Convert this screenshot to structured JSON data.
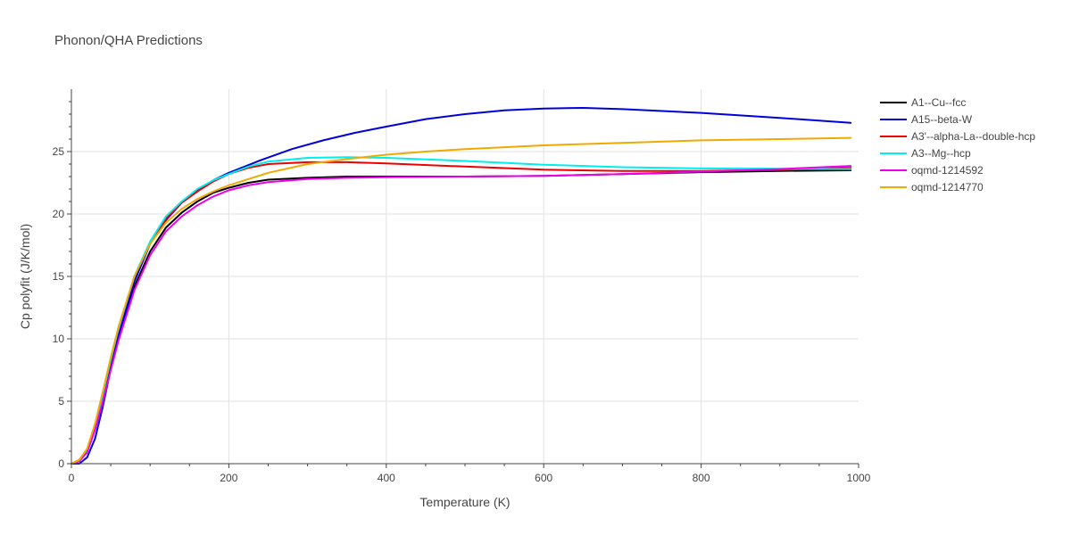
{
  "chart_data": {
    "type": "line",
    "title": "Phonon/QHA Predictions",
    "xlabel": "Temperature (K)",
    "ylabel": "Cp polyfit (J/K/mol)",
    "xlim": [
      0,
      1000
    ],
    "ylim": [
      0,
      30
    ],
    "xticks": [
      0,
      200,
      400,
      600,
      800,
      1000
    ],
    "yticks": [
      0,
      5,
      10,
      15,
      20,
      25
    ],
    "grid": true,
    "legend_position": "top-right",
    "series": [
      {
        "name": "A1--Cu--fcc",
        "color": "#000000",
        "points": [
          [
            0,
            0
          ],
          [
            10,
            0.2
          ],
          [
            20,
            1.0
          ],
          [
            30,
            2.8
          ],
          [
            40,
            5.2
          ],
          [
            50,
            7.8
          ],
          [
            60,
            10.2
          ],
          [
            80,
            14.2
          ],
          [
            100,
            17.0
          ],
          [
            120,
            18.9
          ],
          [
            140,
            20.1
          ],
          [
            160,
            21.0
          ],
          [
            180,
            21.7
          ],
          [
            200,
            22.1
          ],
          [
            225,
            22.5
          ],
          [
            250,
            22.75
          ],
          [
            300,
            22.9
          ],
          [
            350,
            23.0
          ],
          [
            400,
            23.0
          ],
          [
            500,
            23.0
          ],
          [
            600,
            23.05
          ],
          [
            700,
            23.2
          ],
          [
            800,
            23.35
          ],
          [
            900,
            23.45
          ],
          [
            990,
            23.5
          ]
        ]
      },
      {
        "name": "A15--beta-W",
        "color": "#0000dd",
        "points": [
          [
            0,
            0
          ],
          [
            10,
            0.0
          ],
          [
            20,
            0.5
          ],
          [
            30,
            2.0
          ],
          [
            40,
            4.6
          ],
          [
            50,
            7.6
          ],
          [
            60,
            10.3
          ],
          [
            80,
            14.6
          ],
          [
            100,
            17.6
          ],
          [
            120,
            19.5
          ],
          [
            140,
            20.9
          ],
          [
            160,
            21.9
          ],
          [
            180,
            22.7
          ],
          [
            200,
            23.3
          ],
          [
            240,
            24.3
          ],
          [
            280,
            25.2
          ],
          [
            320,
            25.9
          ],
          [
            360,
            26.5
          ],
          [
            400,
            27.0
          ],
          [
            450,
            27.6
          ],
          [
            500,
            28.0
          ],
          [
            550,
            28.3
          ],
          [
            600,
            28.45
          ],
          [
            650,
            28.5
          ],
          [
            700,
            28.4
          ],
          [
            800,
            28.1
          ],
          [
            900,
            27.7
          ],
          [
            990,
            27.3
          ]
        ]
      },
      {
        "name": "A3'--alpha-La--double-hcp",
        "color": "#ee0000",
        "points": [
          [
            0,
            0
          ],
          [
            10,
            0.3
          ],
          [
            20,
            1.1
          ],
          [
            30,
            3.0
          ],
          [
            40,
            5.6
          ],
          [
            50,
            8.3
          ],
          [
            60,
            10.9
          ],
          [
            80,
            15.0
          ],
          [
            100,
            17.7
          ],
          [
            120,
            19.6
          ],
          [
            140,
            20.9
          ],
          [
            160,
            21.8
          ],
          [
            180,
            22.6
          ],
          [
            200,
            23.2
          ],
          [
            225,
            23.7
          ],
          [
            250,
            24.0
          ],
          [
            300,
            24.15
          ],
          [
            350,
            24.15
          ],
          [
            400,
            24.05
          ],
          [
            500,
            23.8
          ],
          [
            600,
            23.55
          ],
          [
            700,
            23.45
          ],
          [
            800,
            23.45
          ],
          [
            900,
            23.55
          ],
          [
            990,
            23.7
          ]
        ]
      },
      {
        "name": "A3--Mg--hcp",
        "color": "#00eeee",
        "points": [
          [
            0,
            0
          ],
          [
            10,
            0.3
          ],
          [
            20,
            1.1
          ],
          [
            30,
            3.0
          ],
          [
            40,
            5.6
          ],
          [
            50,
            8.3
          ],
          [
            60,
            10.9
          ],
          [
            80,
            15.0
          ],
          [
            100,
            17.8
          ],
          [
            120,
            19.8
          ],
          [
            140,
            21.0
          ],
          [
            160,
            22.0
          ],
          [
            180,
            22.7
          ],
          [
            200,
            23.2
          ],
          [
            225,
            23.8
          ],
          [
            250,
            24.2
          ],
          [
            300,
            24.5
          ],
          [
            350,
            24.55
          ],
          [
            400,
            24.5
          ],
          [
            500,
            24.25
          ],
          [
            600,
            23.95
          ],
          [
            700,
            23.75
          ],
          [
            800,
            23.65
          ],
          [
            900,
            23.62
          ],
          [
            990,
            23.6
          ]
        ]
      },
      {
        "name": "oqmd-1214592",
        "color": "#ee00ee",
        "points": [
          [
            0,
            0
          ],
          [
            10,
            0.2
          ],
          [
            20,
            0.9
          ],
          [
            30,
            2.7
          ],
          [
            40,
            5.0
          ],
          [
            50,
            7.5
          ],
          [
            60,
            9.9
          ],
          [
            80,
            13.9
          ],
          [
            100,
            16.7
          ],
          [
            120,
            18.6
          ],
          [
            140,
            19.8
          ],
          [
            160,
            20.7
          ],
          [
            180,
            21.4
          ],
          [
            200,
            21.9
          ],
          [
            225,
            22.3
          ],
          [
            250,
            22.55
          ],
          [
            300,
            22.8
          ],
          [
            350,
            22.9
          ],
          [
            400,
            22.95
          ],
          [
            500,
            23.0
          ],
          [
            600,
            23.05
          ],
          [
            700,
            23.2
          ],
          [
            800,
            23.4
          ],
          [
            900,
            23.6
          ],
          [
            990,
            23.85
          ]
        ]
      },
      {
        "name": "oqmd-1214770",
        "color": "#eeaa00",
        "points": [
          [
            0,
            0
          ],
          [
            10,
            0.3
          ],
          [
            20,
            1.2
          ],
          [
            30,
            3.2
          ],
          [
            40,
            5.8
          ],
          [
            50,
            8.5
          ],
          [
            60,
            11.0
          ],
          [
            80,
            15.0
          ],
          [
            100,
            17.6
          ],
          [
            120,
            19.3
          ],
          [
            140,
            20.4
          ],
          [
            160,
            21.2
          ],
          [
            180,
            21.8
          ],
          [
            200,
            22.3
          ],
          [
            250,
            23.3
          ],
          [
            300,
            24.0
          ],
          [
            350,
            24.4
          ],
          [
            400,
            24.75
          ],
          [
            450,
            25.0
          ],
          [
            500,
            25.2
          ],
          [
            600,
            25.5
          ],
          [
            700,
            25.7
          ],
          [
            800,
            25.9
          ],
          [
            900,
            26.0
          ],
          [
            990,
            26.1
          ]
        ]
      }
    ]
  }
}
